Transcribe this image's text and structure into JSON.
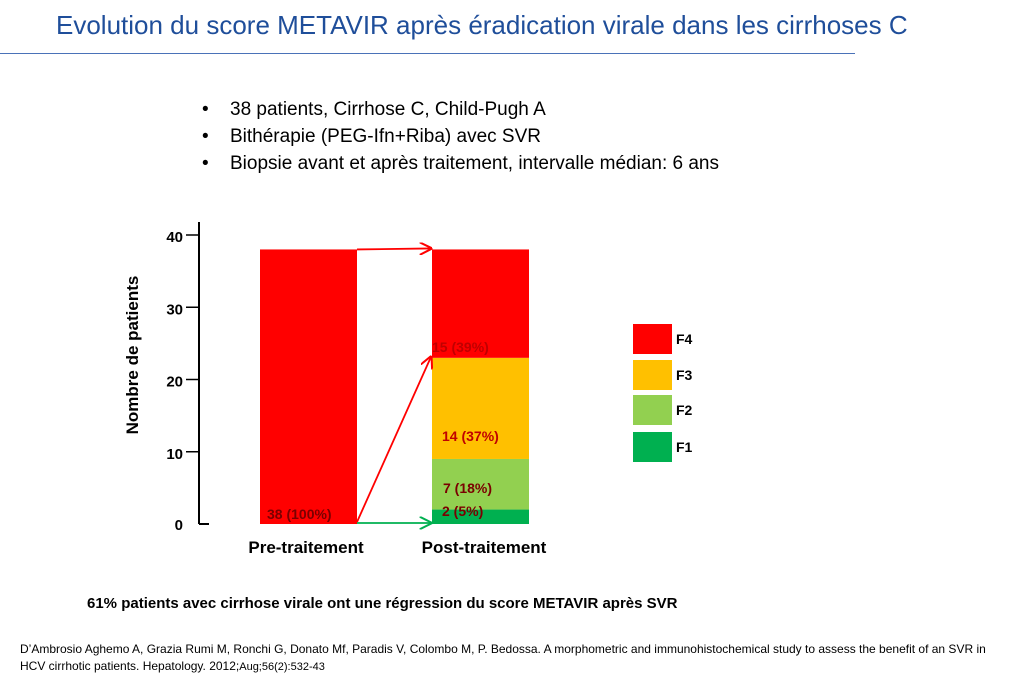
{
  "slide": {
    "title": "Evolution du score METAVIR après éradication virale dans les cirrhoses C",
    "bullets": [
      "38 patients, Cirrhose C, Child-Pugh A",
      "Bithérapie (PEG-Ifn+Riba) avec SVR",
      "Biopsie avant et après traitement, intervalle médian: 6 ans"
    ],
    "conclusion": "61% patients avec cirrhose virale ont une régression du score METAVIR après SVR",
    "reference_main": "D’Ambrosio Aghemo A, Grazia Rumi M, Ronchi G, Donato Mf, Paradis V, Colombo M, P. Bedossa. A morphometric and immunohistochemical study to assess the benefit of an SVR in HCV cirrhotic patients. Hepatology. 2012;",
    "reference_tail": "Aug;56(2):532-43"
  },
  "colors": {
    "title": "#1f4e9a",
    "F4": "#ff0000",
    "F3": "#ffc000",
    "F2": "#92d050",
    "F1": "#00b050",
    "arrow_red": "#ff0000",
    "arrow_green": "#00b050",
    "label_red": "#c00000",
    "label_dark": "#7a0000"
  },
  "chart_data": {
    "type": "bar",
    "stacked": true,
    "ylabel": "Nombre de patients",
    "ylim": [
      0,
      40
    ],
    "yticks": [
      0,
      10,
      20,
      30,
      40
    ],
    "categories": [
      "Pre-traitement",
      "Post-traitement"
    ],
    "series": [
      {
        "name": "F1",
        "values": [
          0,
          2
        ]
      },
      {
        "name": "F2",
        "values": [
          0,
          7
        ]
      },
      {
        "name": "F3",
        "values": [
          0,
          14
        ]
      },
      {
        "name": "F4",
        "values": [
          38,
          15
        ]
      }
    ],
    "bar_labels": [
      {
        "category": "Pre-traitement",
        "series": "F4",
        "text": "38 (100%)"
      },
      {
        "category": "Post-traitement",
        "series": "F1",
        "text": "2 (5%)"
      },
      {
        "category": "Post-traitement",
        "series": "F2",
        "text": "7 (18%)"
      },
      {
        "category": "Post-traitement",
        "series": "F3",
        "text": "14 (37%)"
      },
      {
        "category": "Post-traitement",
        "series": "F4",
        "text": "15  (39%)"
      }
    ],
    "legend": {
      "position": "right",
      "order": [
        "F4",
        "F3",
        "F2",
        "F1"
      ]
    },
    "arrows": [
      {
        "from_category": "Pre-traitement",
        "to_category": "Post-traitement",
        "to_level": 38,
        "color": "red"
      },
      {
        "from_category": "Pre-traitement",
        "to_category": "Post-traitement",
        "to_level": 23,
        "color": "red"
      },
      {
        "from_category": "Pre-traitement",
        "to_category": "Post-traitement",
        "to_level": 0,
        "color": "green"
      }
    ]
  }
}
